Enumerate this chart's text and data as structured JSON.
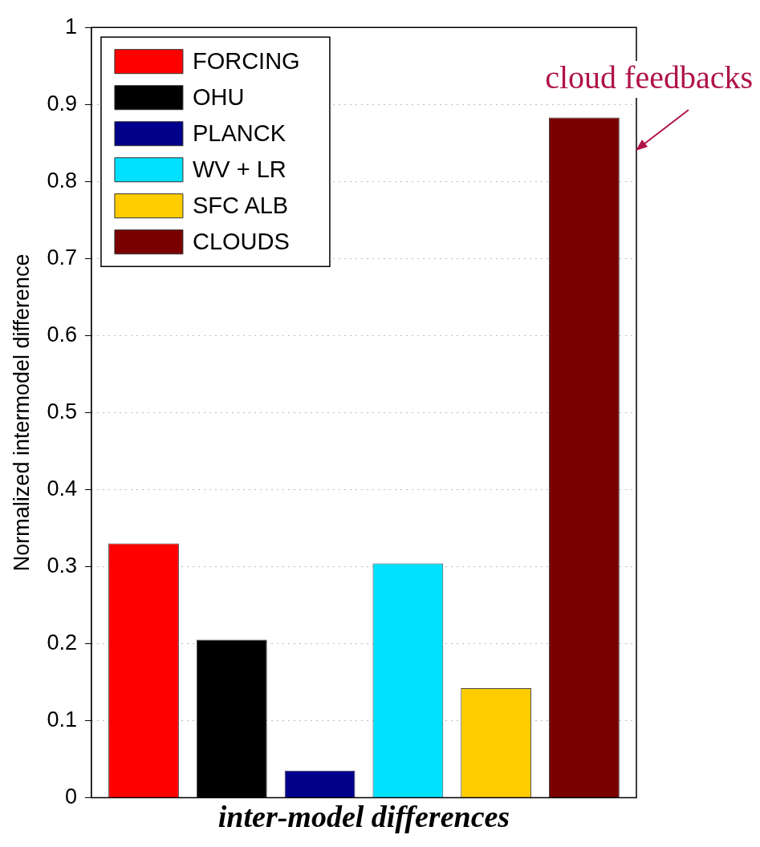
{
  "chart_data": {
    "type": "bar",
    "xlabel": "inter-model differences",
    "ylabel": "Normalized intermodel difference",
    "categories": [
      null
    ],
    "series": [
      {
        "name": "FORCING",
        "color": "#ff0000",
        "values": [
          0.33
        ]
      },
      {
        "name": "OHU",
        "color": "#000000",
        "values": [
          0.205
        ]
      },
      {
        "name": "PLANCK",
        "color": "#00008b",
        "values": [
          0.035
        ]
      },
      {
        "name": "WV + LR",
        "color": "#00e0ff",
        "values": [
          0.304
        ]
      },
      {
        "name": "SFC ALB",
        "color": "#ffcc00",
        "values": [
          0.142
        ]
      },
      {
        "name": "CLOUDS",
        "color": "#7a0000",
        "values": [
          0.883
        ]
      }
    ],
    "ylim": [
      0,
      1
    ],
    "yticks": [
      0,
      0.1,
      0.2,
      0.3,
      0.4,
      0.5,
      0.6,
      0.7,
      0.8,
      0.9,
      1
    ],
    "grid": "y",
    "legend": "top left",
    "annotations": [
      "cloud feedbacks"
    ]
  }
}
